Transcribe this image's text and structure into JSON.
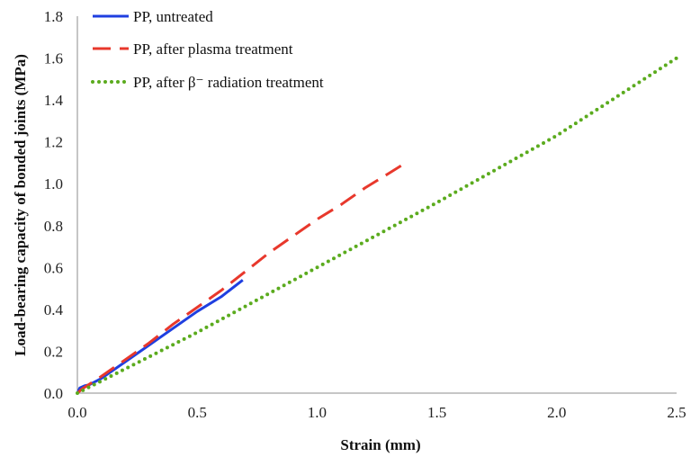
{
  "chart_data": {
    "type": "line",
    "title": "",
    "xlabel": "Strain (mm)",
    "ylabel": "Load-bearing capacity of bonded joints (MPa)",
    "xlim": [
      0,
      2.5
    ],
    "ylim": [
      0,
      1.8
    ],
    "x_ticks": [
      "0.0",
      "0.5",
      "1.0",
      "1.5",
      "2.0",
      "2.5"
    ],
    "y_ticks": [
      "0.0",
      "0.2",
      "0.4",
      "0.6",
      "0.8",
      "1.0",
      "1.2",
      "1.4",
      "1.6",
      "1.8"
    ],
    "grid": false,
    "legend_position": "top-left",
    "series": [
      {
        "name": "PP, untreated",
        "color": "#1f3fe0",
        "style": "solid",
        "points": [
          [
            0,
            0
          ],
          [
            0.01,
            0.025
          ],
          [
            0.03,
            0.035
          ],
          [
            0.05,
            0.04
          ],
          [
            0.1,
            0.07
          ],
          [
            0.2,
            0.15
          ],
          [
            0.3,
            0.23
          ],
          [
            0.4,
            0.31
          ],
          [
            0.5,
            0.39
          ],
          [
            0.6,
            0.46
          ],
          [
            0.69,
            0.54
          ]
        ]
      },
      {
        "name": "PP, after plasma treatment",
        "color": "#e8382c",
        "style": "dashed",
        "points": [
          [
            0,
            0
          ],
          [
            0.02,
            0.02
          ],
          [
            0.1,
            0.08
          ],
          [
            0.2,
            0.16
          ],
          [
            0.3,
            0.24
          ],
          [
            0.4,
            0.33
          ],
          [
            0.5,
            0.41
          ],
          [
            0.6,
            0.49
          ],
          [
            0.7,
            0.58
          ],
          [
            0.8,
            0.67
          ],
          [
            0.9,
            0.75
          ],
          [
            1.0,
            0.83
          ],
          [
            1.1,
            0.9
          ],
          [
            1.2,
            0.98
          ],
          [
            1.3,
            1.05
          ],
          [
            1.37,
            1.1
          ]
        ]
      },
      {
        "name": "PP, after β⁻ radiation treatment",
        "color": "#5bab1e",
        "style": "dotted",
        "points": [
          [
            0,
            0
          ],
          [
            0.5,
            0.29
          ],
          [
            1.0,
            0.6
          ],
          [
            1.5,
            0.91
          ],
          [
            2.0,
            1.23
          ],
          [
            2.5,
            1.6
          ]
        ]
      }
    ]
  }
}
